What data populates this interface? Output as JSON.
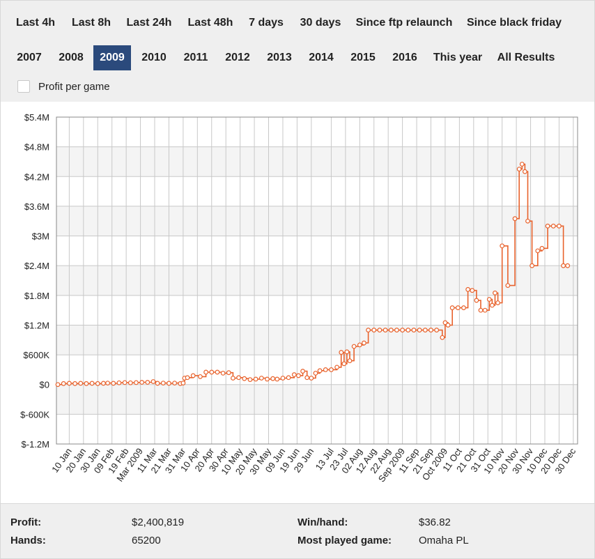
{
  "tabs_row1": [
    "Last 4h",
    "Last 8h",
    "Last 24h",
    "Last 48h",
    "7 days",
    "30 days",
    "Since ftp relaunch",
    "Since black friday"
  ],
  "tabs_row2": [
    "2007",
    "2008",
    "2009",
    "2010",
    "2011",
    "2012",
    "2013",
    "2014",
    "2015",
    "2016",
    "This year",
    "All Results"
  ],
  "active_tab": "2009",
  "checkbox": {
    "label": "Profit per game",
    "checked": false
  },
  "stats": {
    "profit_label": "Profit:",
    "profit_value": "$2,400,819",
    "hands_label": "Hands:",
    "hands_value": "65200",
    "winhand_label": "Win/hand:",
    "winhand_value": "$36.82",
    "game_label": "Most played game:",
    "game_value": "Omaha PL"
  },
  "colors": {
    "line": "#e8622c",
    "active_tab": "#2b4a7c",
    "grid": "#c8c8c8",
    "band": "#f4f4f4"
  },
  "chart_data": {
    "type": "line",
    "title": "",
    "xlabel": "",
    "ylabel": "",
    "ylim": [
      -1200000,
      5400000
    ],
    "y_ticks": [
      -1200000,
      -600000,
      0,
      600000,
      1200000,
      1800000,
      2400000,
      3000000,
      3600000,
      4200000,
      4800000,
      5400000
    ],
    "y_tick_labels": [
      "$-1.2M",
      "$-600K",
      "$0",
      "$600K",
      "$1.2M",
      "$1.8M",
      "$2.4M",
      "$3M",
      "$3.6M",
      "$4.2M",
      "$4.8M",
      "$5.4M"
    ],
    "x_range": [
      "2009-01-01",
      "2010-01-02"
    ],
    "x_ticks": [
      "2009-01-10",
      "2009-01-20",
      "2009-01-30",
      "2009-02-09",
      "2009-02-19",
      "2009-03-01",
      "2009-03-11",
      "2009-03-21",
      "2009-03-31",
      "2009-04-10",
      "2009-04-20",
      "2009-04-30",
      "2009-05-10",
      "2009-05-20",
      "2009-05-30",
      "2009-06-09",
      "2009-06-19",
      "2009-06-29",
      "2009-07-13",
      "2009-07-23",
      "2009-08-02",
      "2009-08-12",
      "2009-08-22",
      "2009-09-01",
      "2009-09-11",
      "2009-09-21",
      "2009-10-01",
      "2009-10-11",
      "2009-10-21",
      "2009-10-31",
      "2009-11-10",
      "2009-11-20",
      "2009-11-30",
      "2009-12-10",
      "2009-12-20",
      "2009-12-30"
    ],
    "x_tick_labels": [
      "10 Jan",
      "20 Jan",
      "30 Jan",
      "09 Feb",
      "19 Feb",
      "Mar 2009",
      "11 Mar",
      "21 Mar",
      "31 Mar",
      "10 Apr",
      "20 Apr",
      "30 Apr",
      "10 May",
      "20 May",
      "30 May",
      "09 Jun",
      "19 Jun",
      "29 Jun",
      "13 Jul",
      "23 Jul",
      "02 Aug",
      "12 Aug",
      "22 Aug",
      "Sep 2009",
      "11 Sep",
      "21 Sep",
      "Oct 2009",
      "11 Oct",
      "21 Oct",
      "31 Oct",
      "10 Nov",
      "20 Nov",
      "30 Nov",
      "10 Dec",
      "20 Dec",
      "30 Dec"
    ],
    "grid": true,
    "series": [
      {
        "color": "#e8622c",
        "points": [
          [
            "2009-01-02",
            0
          ],
          [
            "2009-01-06",
            20000
          ],
          [
            "2009-01-10",
            25000
          ],
          [
            "2009-01-14",
            20000
          ],
          [
            "2009-01-18",
            25000
          ],
          [
            "2009-01-22",
            20000
          ],
          [
            "2009-01-26",
            25000
          ],
          [
            "2009-01-30",
            20000
          ],
          [
            "2009-02-03",
            25000
          ],
          [
            "2009-02-06",
            30000
          ],
          [
            "2009-02-10",
            25000
          ],
          [
            "2009-02-14",
            35000
          ],
          [
            "2009-02-18",
            40000
          ],
          [
            "2009-02-22",
            35000
          ],
          [
            "2009-02-26",
            40000
          ],
          [
            "2009-03-02",
            45000
          ],
          [
            "2009-03-06",
            45000
          ],
          [
            "2009-03-10",
            60000
          ],
          [
            "2009-03-13",
            25000
          ],
          [
            "2009-03-17",
            30000
          ],
          [
            "2009-03-21",
            25000
          ],
          [
            "2009-03-25",
            30000
          ],
          [
            "2009-03-29",
            20000
          ],
          [
            "2009-03-31",
            30000
          ],
          [
            "2009-04-01",
            130000
          ],
          [
            "2009-04-03",
            140000
          ],
          [
            "2009-04-07",
            180000
          ],
          [
            "2009-04-12",
            160000
          ],
          [
            "2009-04-16",
            250000
          ],
          [
            "2009-04-20",
            250000
          ],
          [
            "2009-04-24",
            250000
          ],
          [
            "2009-04-28",
            230000
          ],
          [
            "2009-05-02",
            240000
          ],
          [
            "2009-05-05",
            130000
          ],
          [
            "2009-05-09",
            140000
          ],
          [
            "2009-05-13",
            120000
          ],
          [
            "2009-05-17",
            100000
          ],
          [
            "2009-05-21",
            110000
          ],
          [
            "2009-05-25",
            130000
          ],
          [
            "2009-05-29",
            110000
          ],
          [
            "2009-06-02",
            120000
          ],
          [
            "2009-06-05",
            110000
          ],
          [
            "2009-06-09",
            130000
          ],
          [
            "2009-06-13",
            140000
          ],
          [
            "2009-06-17",
            200000
          ],
          [
            "2009-06-20",
            180000
          ],
          [
            "2009-06-23",
            270000
          ],
          [
            "2009-06-26",
            140000
          ],
          [
            "2009-06-29",
            130000
          ],
          [
            "2009-07-02",
            230000
          ],
          [
            "2009-07-05",
            280000
          ],
          [
            "2009-07-09",
            300000
          ],
          [
            "2009-07-13",
            300000
          ],
          [
            "2009-07-17",
            350000
          ],
          [
            "2009-07-20",
            650000
          ],
          [
            "2009-07-22",
            420000
          ],
          [
            "2009-07-24",
            660000
          ],
          [
            "2009-07-26",
            480000
          ],
          [
            "2009-07-29",
            770000
          ],
          [
            "2009-08-02",
            800000
          ],
          [
            "2009-08-05",
            840000
          ],
          [
            "2009-08-08",
            1100000
          ],
          [
            "2009-08-12",
            1100000
          ],
          [
            "2009-08-16",
            1100000
          ],
          [
            "2009-08-20",
            1100000
          ],
          [
            "2009-08-24",
            1100000
          ],
          [
            "2009-08-28",
            1100000
          ],
          [
            "2009-09-01",
            1100000
          ],
          [
            "2009-09-05",
            1100000
          ],
          [
            "2009-09-09",
            1100000
          ],
          [
            "2009-09-13",
            1100000
          ],
          [
            "2009-09-17",
            1100000
          ],
          [
            "2009-09-21",
            1100000
          ],
          [
            "2009-09-25",
            1100000
          ],
          [
            "2009-09-29",
            950000
          ],
          [
            "2009-10-01",
            1250000
          ],
          [
            "2009-10-03",
            1200000
          ],
          [
            "2009-10-06",
            1550000
          ],
          [
            "2009-10-10",
            1550000
          ],
          [
            "2009-10-14",
            1550000
          ],
          [
            "2009-10-17",
            1920000
          ],
          [
            "2009-10-20",
            1900000
          ],
          [
            "2009-10-23",
            1700000
          ],
          [
            "2009-10-26",
            1500000
          ],
          [
            "2009-10-29",
            1500000
          ],
          [
            "2009-11-01",
            1720000
          ],
          [
            "2009-11-03",
            1600000
          ],
          [
            "2009-11-05",
            1850000
          ],
          [
            "2009-11-07",
            1650000
          ],
          [
            "2009-11-10",
            2800000
          ],
          [
            "2009-11-14",
            2000000
          ],
          [
            "2009-11-19",
            3350000
          ],
          [
            "2009-11-22",
            4350000
          ],
          [
            "2009-11-24",
            4450000
          ],
          [
            "2009-11-26",
            4300000
          ],
          [
            "2009-11-28",
            3300000
          ],
          [
            "2009-12-01",
            2400000
          ],
          [
            "2009-12-05",
            2700000
          ],
          [
            "2009-12-08",
            2750000
          ],
          [
            "2009-12-12",
            3200000
          ],
          [
            "2009-12-16",
            3200000
          ],
          [
            "2009-12-20",
            3200000
          ],
          [
            "2009-12-23",
            2400000
          ],
          [
            "2009-12-26",
            2400000
          ]
        ]
      }
    ]
  }
}
